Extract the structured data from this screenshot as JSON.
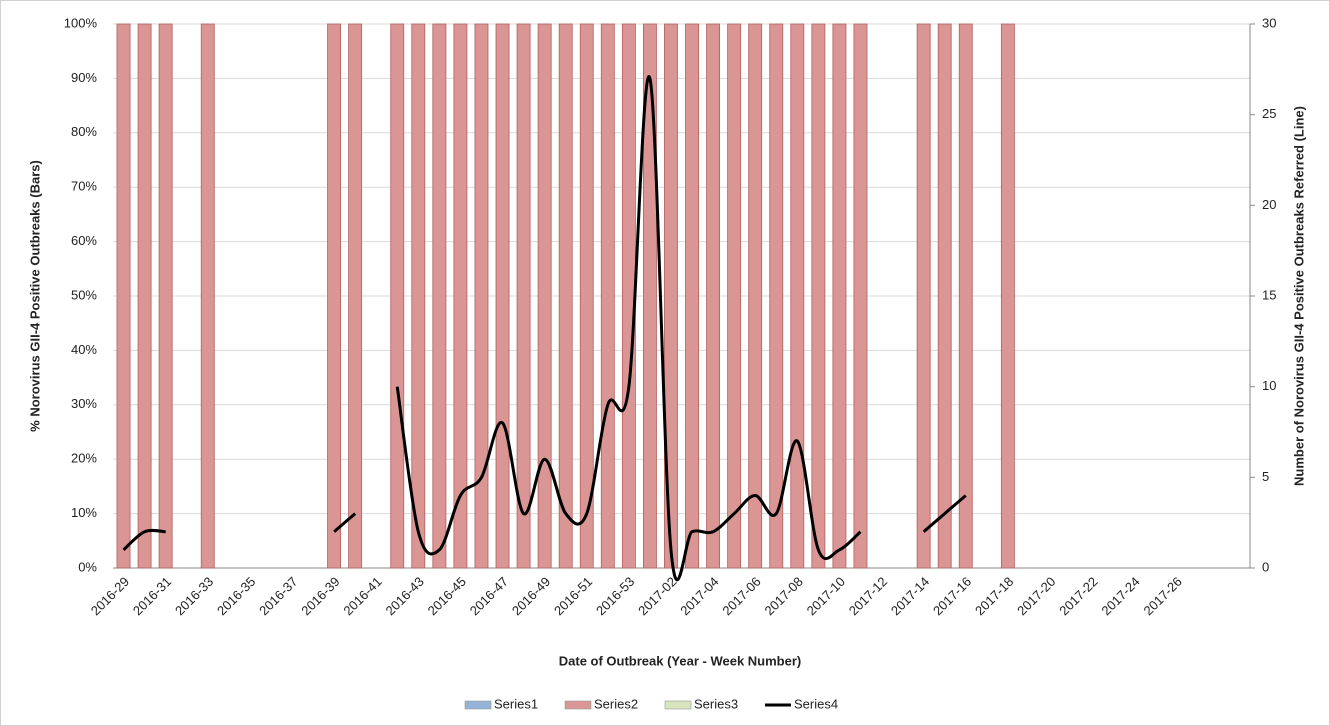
{
  "chart_data": {
    "type": "bar",
    "x_label": "Date of Outbreak (Year - Week Number)",
    "y_label": "% Norovirus GII-4 Positive Outbreaks (Bars)",
    "y2_label": "Number of Norovirus GII-4 Positive Outbreaks Referred (Line)",
    "categories": [
      "2016-29",
      null,
      "2016-31",
      null,
      "2016-33",
      null,
      "2016-35",
      null,
      "2016-37",
      null,
      "2016-39",
      null,
      "2016-41",
      null,
      "2016-43",
      null,
      "2016-45",
      null,
      "2016-47",
      null,
      "2016-49",
      null,
      "2016-51",
      null,
      "2016-53",
      null,
      "2017-02",
      null,
      "2017-04",
      null,
      "2017-06",
      null,
      "2017-08",
      null,
      "2017-10",
      null,
      "2017-12",
      null,
      "2017-14",
      null,
      "2017-16",
      null,
      "2017-18",
      null,
      "2017-20",
      null,
      "2017-22",
      null,
      "2017-24",
      null,
      "2017-26",
      null,
      null,
      null
    ],
    "series": [
      {
        "name": "Series1",
        "color": "#95b3d7",
        "values": [
          null,
          null,
          null,
          null,
          null,
          null,
          null,
          null,
          null,
          null,
          null,
          null,
          null,
          null,
          null,
          null,
          null,
          null,
          null,
          null,
          null,
          null,
          null,
          null,
          null,
          null,
          null,
          null,
          null,
          null,
          null,
          null,
          null,
          null,
          null,
          null,
          null,
          null,
          null,
          null,
          null,
          null,
          null,
          null,
          null,
          null,
          null,
          null,
          null,
          null,
          null,
          null,
          null,
          null
        ]
      },
      {
        "name": "Series2",
        "color": "#d99694",
        "values": [
          100,
          100,
          100,
          null,
          100,
          null,
          null,
          null,
          null,
          null,
          100,
          100,
          null,
          100,
          100,
          100,
          100,
          100,
          100,
          100,
          100,
          100,
          100,
          100,
          100,
          100,
          100,
          100,
          100,
          100,
          100,
          100,
          100,
          100,
          100,
          100,
          null,
          null,
          100,
          100,
          100,
          null,
          100,
          null,
          null,
          null,
          null,
          null,
          null,
          null,
          null,
          null,
          null,
          null
        ]
      },
      {
        "name": "Series3",
        "color": "#d7e4bd",
        "values": [
          null,
          null,
          null,
          null,
          null,
          null,
          null,
          null,
          null,
          null,
          null,
          null,
          null,
          null,
          null,
          null,
          null,
          null,
          null,
          null,
          null,
          null,
          null,
          null,
          null,
          null,
          null,
          null,
          null,
          null,
          null,
          null,
          null,
          null,
          null,
          null,
          null,
          null,
          null,
          null,
          null,
          null,
          null,
          null,
          null,
          null,
          null,
          null,
          null,
          null,
          null,
          null,
          null,
          null
        ]
      },
      {
        "name": "Series4",
        "color": "#000000",
        "type": "line",
        "axis": "y2",
        "values": [
          1,
          2,
          2,
          null,
          null,
          null,
          null,
          null,
          null,
          null,
          2,
          3,
          null,
          10,
          2,
          1,
          4,
          5,
          8,
          3,
          6,
          3,
          3,
          9,
          10,
          27,
          1,
          2,
          2,
          3,
          4,
          3,
          7,
          1,
          1,
          2,
          null,
          null,
          2,
          3,
          4,
          null,
          null,
          null,
          null,
          null,
          null,
          null,
          null,
          null,
          null,
          null,
          null,
          null
        ]
      }
    ],
    "ylim": [
      0,
      100
    ],
    "yticks": [
      {
        "value": 0,
        "label": "0%"
      },
      {
        "value": 10,
        "label": "10%"
      },
      {
        "value": 20,
        "label": "20%"
      },
      {
        "value": 30,
        "label": "30%"
      },
      {
        "value": 40,
        "label": "40%"
      },
      {
        "value": 50,
        "label": "50%"
      },
      {
        "value": 60,
        "label": "60%"
      },
      {
        "value": 70,
        "label": "70%"
      },
      {
        "value": 80,
        "label": "80%"
      },
      {
        "value": 90,
        "label": "90%"
      },
      {
        "value": 100,
        "label": "100%"
      }
    ],
    "y2lim": [
      0,
      30
    ],
    "y2ticks": [
      0,
      5,
      10,
      15,
      20,
      25,
      30
    ],
    "grid": true,
    "legend": "bottom"
  }
}
